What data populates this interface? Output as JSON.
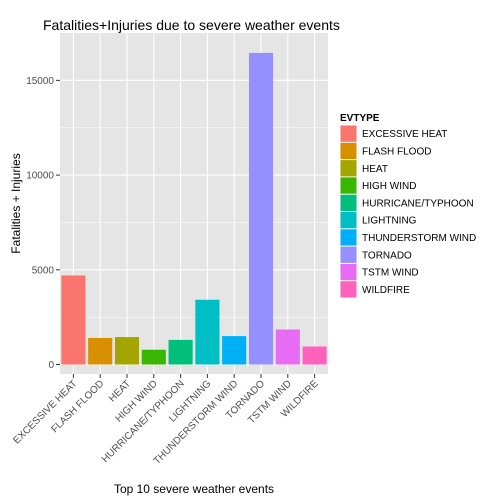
{
  "chart_data": {
    "type": "bar",
    "title": "Fatalities+Injuries due to severe weather events",
    "xlabel": "Top 10 severe weather events",
    "ylabel": "Fatalities + Injuries",
    "categories": [
      "EXCESSIVE HEAT",
      "FLASH FLOOD",
      "HEAT",
      "HIGH WIND",
      "HURRICANE/TYPHOON",
      "LIGHTNING",
      "THUNDERSTORM WIND",
      "TORNADO",
      "TSTM WIND",
      "WILDFIRE"
    ],
    "x_tick_labels": [
      "EXCESSIVE HEAT",
      "FLASH FLOOD",
      "HEAT",
      "HIGH WIND",
      "HURRICANE/TYPHOON",
      "LIGHTNING",
      "THUNDERSTORM WIND",
      "TORNADO",
      "TSTM WIND",
      "WILDFIRE"
    ],
    "values": [
      4700,
      1400,
      1450,
      780,
      1300,
      3420,
      1500,
      16450,
      1850,
      950
    ],
    "colors": [
      "#F8766D",
      "#D89000",
      "#A3A500",
      "#39B600",
      "#00BF7D",
      "#00BFC4",
      "#00B0F6",
      "#9590FF",
      "#E76BF3",
      "#FF62BC"
    ],
    "ylim": [
      -500,
      17500
    ],
    "y_ticks": [
      0,
      5000,
      10000,
      15000
    ],
    "y_tick_labels": [
      "0",
      "5000",
      "10000",
      "15000"
    ],
    "grid": true,
    "legend": {
      "title": "EVTYPE",
      "position": "right",
      "entries": [
        "EXCESSIVE HEAT",
        "FLASH FLOOD",
        "HEAT",
        "HIGH WIND",
        "HURRICANE/TYPHOON",
        "LIGHTNING",
        "THUNDERSTORM WIND",
        "TORNADO",
        "TSTM WIND",
        "WILDFIRE"
      ]
    },
    "panel_background": "#E5E5E5",
    "grid_color": "#FFFFFF"
  }
}
